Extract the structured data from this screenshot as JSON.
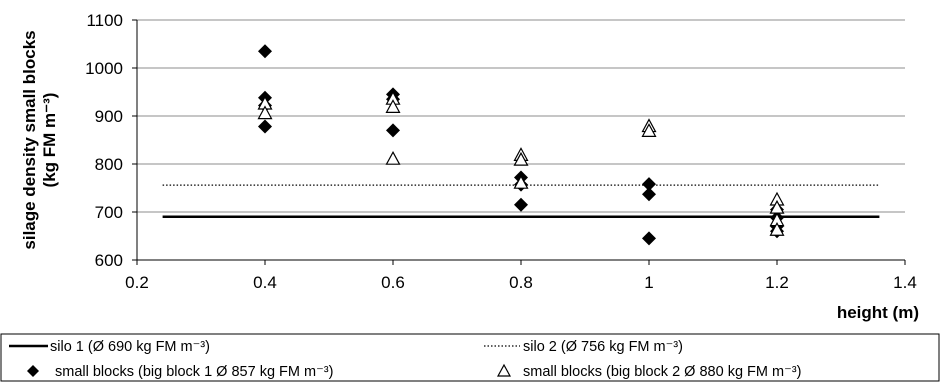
{
  "chart_data": {
    "type": "scatter",
    "xlabel": "height (m)",
    "ylabel_line1": "silage density small blocks",
    "ylabel_line2": "(kg FM m⁻³)",
    "xlim": [
      0.2,
      1.4
    ],
    "ylim": [
      600,
      1100
    ],
    "x_ticks": [
      "0.2",
      "0.4",
      "0.6",
      "0.8",
      "1",
      "1.2",
      "1.4"
    ],
    "y_ticks": [
      "600",
      "700",
      "800",
      "900",
      "1000",
      "1100"
    ],
    "grid": "horizontal",
    "legend_position": "bottom",
    "reference_lines": [
      {
        "name": "silo 1 (Ø 690 kg FM m⁻³)",
        "y": 690,
        "x_range": [
          0.24,
          1.36
        ],
        "style": "solid"
      },
      {
        "name": "silo 2 (Ø 756 kg FM m⁻³)",
        "y": 756,
        "x_range": [
          0.24,
          1.36
        ],
        "style": "dotted"
      }
    ],
    "series": [
      {
        "name": "small blocks (big block 1 Ø 857 kg FM m⁻³)",
        "marker": "filled-diamond",
        "points": [
          [
            0.4,
            1035
          ],
          [
            0.4,
            938
          ],
          [
            0.4,
            922
          ],
          [
            0.4,
            878
          ],
          [
            0.6,
            945
          ],
          [
            0.6,
            935
          ],
          [
            0.6,
            870
          ],
          [
            0.8,
            772
          ],
          [
            0.8,
            757
          ],
          [
            0.8,
            715
          ],
          [
            1.0,
            758
          ],
          [
            1.0,
            737
          ],
          [
            1.0,
            645
          ],
          [
            1.2,
            705
          ],
          [
            1.2,
            688
          ],
          [
            1.2,
            670
          ],
          [
            1.2,
            660
          ]
        ]
      },
      {
        "name": "small blocks (big block 2 Ø 880 kg FM m⁻³)",
        "marker": "open-triangle",
        "points": [
          [
            0.4,
            925
          ],
          [
            0.4,
            905
          ],
          [
            0.6,
            935
          ],
          [
            0.6,
            918
          ],
          [
            0.6,
            810
          ],
          [
            0.8,
            818
          ],
          [
            0.8,
            808
          ],
          [
            0.8,
            760
          ],
          [
            1.0,
            878
          ],
          [
            1.0,
            868
          ],
          [
            1.2,
            725
          ],
          [
            1.2,
            708
          ],
          [
            1.2,
            682
          ],
          [
            1.2,
            662
          ]
        ]
      }
    ]
  }
}
